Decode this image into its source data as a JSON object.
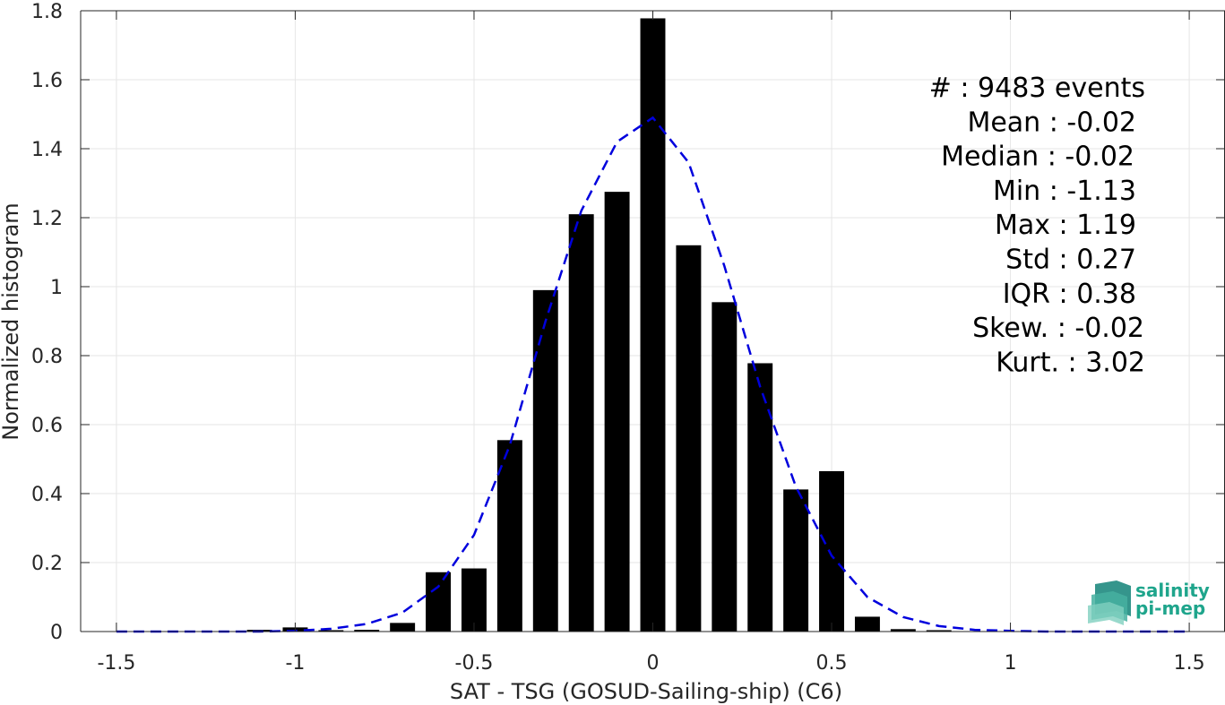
{
  "chart_data": {
    "type": "bar",
    "xlabel": "SAT - TSG (GOSUD-Sailing-ship) (C6)",
    "ylabel": "Normalized histogram",
    "xlim": [
      -1.6,
      1.6
    ],
    "ylim": [
      0,
      1.8
    ],
    "x_ticks": [
      -1.5,
      -1,
      -0.5,
      0,
      0.5,
      1,
      1.5
    ],
    "x_tick_labels": [
      "-1.5",
      "-1",
      "-0.5",
      "0",
      "0.5",
      "1",
      "1.5"
    ],
    "y_ticks": [
      0,
      0.2,
      0.4,
      0.6,
      0.8,
      1,
      1.2,
      1.4,
      1.6,
      1.8
    ],
    "y_tick_labels": [
      "0",
      "0.2",
      "0.4",
      "0.6",
      "0.8",
      "1",
      "1.2",
      "1.4",
      "1.6",
      "1.8"
    ],
    "grid": true,
    "bar_color": "#000000",
    "bar_width": 0.07,
    "bars": {
      "x": [
        -1.1,
        -1.0,
        -0.9,
        -0.8,
        -0.7,
        -0.6,
        -0.5,
        -0.4,
        -0.3,
        -0.2,
        -0.1,
        0.0,
        0.1,
        0.2,
        0.3,
        0.4,
        0.5,
        0.6,
        0.7,
        0.8
      ],
      "values": [
        0.005,
        0.012,
        0.004,
        0.005,
        0.025,
        0.172,
        0.183,
        0.555,
        0.99,
        1.21,
        1.275,
        1.778,
        1.12,
        0.955,
        0.778,
        0.412,
        0.465,
        0.043,
        0.007,
        0.004
      ]
    },
    "fit_line": {
      "style": "dashed",
      "color": "#0000dd",
      "x": [
        -1.5,
        -1.4,
        -1.3,
        -1.2,
        -1.1,
        -1.0,
        -0.9,
        -0.8,
        -0.7,
        -0.6,
        -0.5,
        -0.4,
        -0.3,
        -0.2,
        -0.1,
        0.0,
        0.1,
        0.2,
        0.3,
        0.4,
        0.5,
        0.6,
        0.7,
        0.8,
        0.9,
        1.0,
        1.1,
        1.2,
        1.3,
        1.4,
        1.5
      ],
      "y": [
        0,
        0,
        0,
        0,
        0,
        0.002,
        0.008,
        0.022,
        0.055,
        0.13,
        0.28,
        0.54,
        0.9,
        1.22,
        1.42,
        1.49,
        1.36,
        1.06,
        0.71,
        0.42,
        0.22,
        0.1,
        0.042,
        0.016,
        0.005,
        0.002,
        0,
        0,
        0,
        0,
        0
      ]
    },
    "annotations": [
      "#  : 9483 events",
      "Mean : -0.02",
      "Median : -0.02",
      "Min : -1.13",
      "Max : 1.19",
      "Std : 0.27",
      "IQR : 0.38",
      "Skew. : -0.02",
      "Kurt. : 3.02"
    ],
    "logo": {
      "line1": "salinity",
      "line2": "pi-mep",
      "color": "#1fa58c"
    }
  }
}
